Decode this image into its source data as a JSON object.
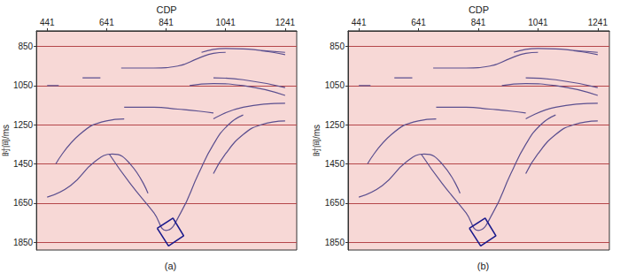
{
  "chart_data": [
    {
      "type": "line",
      "title": "(a)",
      "x_label": "CDP",
      "y_label": "时间/ms",
      "xlim": [
        405,
        1280
      ],
      "xticks": [
        441,
        641,
        841,
        1041,
        1241
      ],
      "ylim": [
        770,
        1890
      ],
      "yticks": [
        850,
        1050,
        1250,
        1450,
        1650,
        1850
      ],
      "grid": true,
      "color": "#5b4f8f",
      "marker": "none",
      "series": [
        {
          "x": [
            960,
            1000,
            1041,
            1100,
            1160,
            1241
          ],
          "values": [
            880,
            865,
            860,
            862,
            870,
            880
          ]
        },
        {
          "x": [
            1160,
            1200,
            1241
          ],
          "values": [
            872,
            880,
            892
          ]
        },
        {
          "x": [
            690,
            800,
            880,
            950,
            1000,
            1041
          ],
          "values": [
            960,
            960,
            950,
            910,
            885,
            880
          ]
        },
        {
          "x": [
            441,
            480
          ],
          "values": [
            1050,
            1050
          ]
        },
        {
          "x": [
            560,
            620
          ],
          "values": [
            1010,
            1010
          ]
        },
        {
          "x": [
            920,
            1000,
            1100,
            1241
          ],
          "values": [
            1050,
            1040,
            1050,
            1100
          ]
        },
        {
          "x": [
            1000,
            1100,
            1241
          ],
          "values": [
            1010,
            1020,
            1060
          ]
        },
        {
          "x": [
            700,
            800,
            880,
            950,
            1000
          ],
          "values": [
            1160,
            1160,
            1170,
            1180,
            1190
          ]
        },
        {
          "x": [
            1000,
            1100,
            1241
          ],
          "values": [
            1220,
            1160,
            1140
          ]
        },
        {
          "x": [
            470,
            550,
            640,
            700
          ],
          "values": [
            1450,
            1300,
            1230,
            1220
          ]
        },
        {
          "x": [
            650,
            720,
            800,
            841,
            890,
            950,
            1000,
            1050,
            1100
          ],
          "values": [
            1400,
            1550,
            1700,
            1790,
            1700,
            1500,
            1350,
            1250,
            1200
          ]
        },
        {
          "x": [
            441,
            520,
            600,
            660,
            720,
            780
          ],
          "values": [
            1620,
            1560,
            1440,
            1400,
            1450,
            1600
          ]
        },
        {
          "x": [
            1000,
            1040,
            1100,
            1160,
            1241
          ],
          "values": [
            1500,
            1400,
            1300,
            1250,
            1230
          ]
        },
        {
          "x": [
            811,
            864,
            900,
            849,
            811
          ],
          "values": [
            1779,
            1727,
            1817,
            1869,
            1779
          ],
          "color": "#1a1a8c",
          "line_style": "solid"
        }
      ]
    },
    {
      "type": "line",
      "title": "(b)",
      "x_label": "CDP",
      "y_label": "时间/ms",
      "xlim": [
        405,
        1280
      ],
      "xticks": [
        441,
        641,
        841,
        1041,
        1241
      ],
      "ylim": [
        770,
        1890
      ],
      "yticks": [
        850,
        1050,
        1250,
        1450,
        1650,
        1850
      ],
      "grid": true,
      "color": "#5b4f8f",
      "marker": "none",
      "series": [
        {
          "x": [
            960,
            1000,
            1041,
            1100,
            1160,
            1241
          ],
          "values": [
            880,
            865,
            860,
            862,
            870,
            880
          ]
        },
        {
          "x": [
            1160,
            1200,
            1241
          ],
          "values": [
            872,
            880,
            892
          ]
        },
        {
          "x": [
            690,
            800,
            880,
            950,
            1000,
            1041
          ],
          "values": [
            960,
            960,
            950,
            910,
            885,
            880
          ]
        },
        {
          "x": [
            441,
            480
          ],
          "values": [
            1050,
            1050
          ]
        },
        {
          "x": [
            560,
            620
          ],
          "values": [
            1010,
            1010
          ]
        },
        {
          "x": [
            920,
            1000,
            1100,
            1241
          ],
          "values": [
            1050,
            1040,
            1050,
            1100
          ]
        },
        {
          "x": [
            1000,
            1100,
            1241
          ],
          "values": [
            1010,
            1020,
            1060
          ]
        },
        {
          "x": [
            700,
            800,
            880,
            950,
            1000
          ],
          "values": [
            1160,
            1160,
            1170,
            1180,
            1190
          ]
        },
        {
          "x": [
            1000,
            1100,
            1241
          ],
          "values": [
            1220,
            1160,
            1140
          ]
        },
        {
          "x": [
            470,
            550,
            640,
            700
          ],
          "values": [
            1450,
            1300,
            1230,
            1220
          ]
        },
        {
          "x": [
            650,
            720,
            800,
            841,
            890,
            950,
            1000,
            1050,
            1100
          ],
          "values": [
            1400,
            1550,
            1700,
            1790,
            1700,
            1500,
            1350,
            1250,
            1200
          ]
        },
        {
          "x": [
            441,
            520,
            600,
            660,
            720,
            780
          ],
          "values": [
            1620,
            1560,
            1440,
            1400,
            1450,
            1600
          ]
        },
        {
          "x": [
            1000,
            1040,
            1100,
            1160,
            1241
          ],
          "values": [
            1500,
            1400,
            1300,
            1250,
            1230
          ]
        },
        {
          "x": [
            811,
            864,
            900,
            849,
            811
          ],
          "values": [
            1779,
            1727,
            1817,
            1869,
            1779
          ],
          "color": "#1a1a8c",
          "line_style": "solid"
        }
      ]
    }
  ]
}
